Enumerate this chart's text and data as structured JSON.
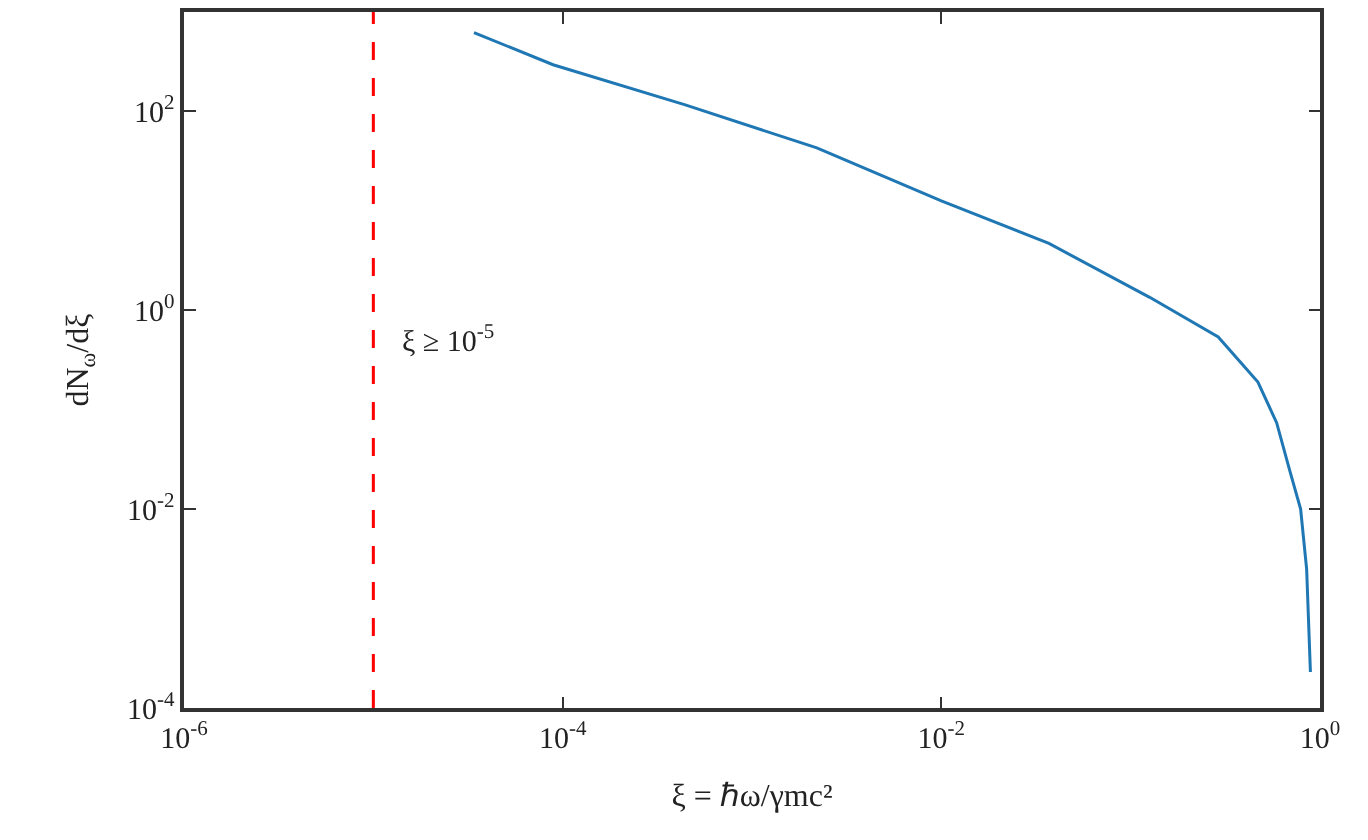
{
  "chart_data": {
    "type": "line",
    "xlabel": "ξ = ℏω/γmc²",
    "ylabel": "dN$_{ω}$/dξ",
    "log": "xy",
    "x": [
      3.4e-05,
      8.9e-05,
      0.00044,
      0.0022,
      0.01,
      0.037,
      0.126,
      0.29,
      0.47,
      0.59,
      0.69,
      0.79,
      0.85,
      0.89
    ],
    "series": [
      {
        "color": "#1f77b4",
        "values": [
          620,
          295,
          117,
          43,
          12.6,
          4.7,
          1.35,
          0.54,
          0.19,
          0.074,
          0.025,
          0.01,
          0.0025,
          0.00023
        ]
      }
    ],
    "xlim": [
      1e-06,
      1
    ],
    "ylim": [
      0.0001,
      1000
    ],
    "xticks": [
      {
        "value": 1e-06,
        "label": "10$^{-6}$"
      },
      {
        "value": 0.0001,
        "label": "10$^{-4}$"
      },
      {
        "value": 0.01,
        "label": "10$^{-2}$"
      },
      {
        "value": 1,
        "label": "10$^{0}$"
      }
    ],
    "yticks": [
      {
        "value": 0.0001,
        "label": "10$^{-4}$"
      },
      {
        "value": 0.01,
        "label": "10$^{-2}$"
      },
      {
        "value": 1,
        "label": "10$^{0}$"
      },
      {
        "value": 100,
        "label": "10$^{2}$"
      }
    ],
    "ref_lines": [
      {
        "axis": "x",
        "value": 1e-05,
        "color": "#ff0000",
        "line_style": "dashed"
      }
    ],
    "annotations": [
      {
        "text": "ξ ≥ 10$^{-5}$",
        "x": 1e-05,
        "y": 0.5
      }
    ]
  }
}
